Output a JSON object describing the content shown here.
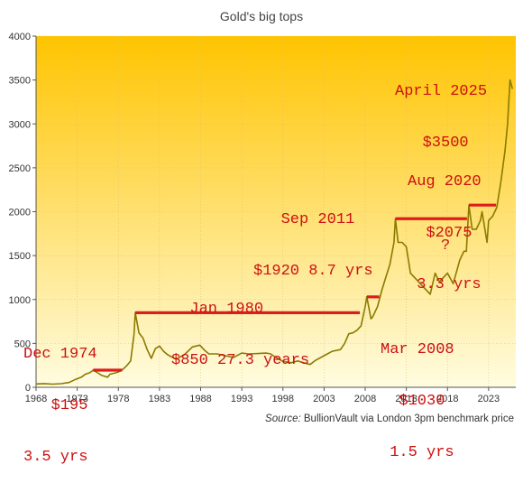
{
  "chart_data": {
    "type": "line",
    "title": "Gold's big tops",
    "xlabel": "",
    "ylabel": "",
    "xlim": [
      1968,
      2026.3
    ],
    "ylim": [
      0,
      4000
    ],
    "xticks": [
      1968,
      1973,
      1978,
      1983,
      1988,
      1993,
      1998,
      2003,
      2008,
      2013,
      2018,
      2023
    ],
    "yticks": [
      0,
      500,
      1000,
      1500,
      2000,
      2500,
      3000,
      3500,
      4000
    ],
    "grid": true,
    "colors": {
      "line": "#8a7a00",
      "top_lines": "#dd1c1c",
      "annotation": "#cc1010",
      "bg_top": "#ffc400",
      "bg_bottom": "#fffce0"
    },
    "series": [
      {
        "x": [
          1968.0,
          1969.0,
          1970.0,
          1971.0,
          1972.0,
          1972.8,
          1973.5,
          1974.0,
          1974.5,
          1974.95,
          1975.5,
          1976.0,
          1976.7,
          1977.0,
          1977.5,
          1978.0,
          1978.5,
          1979.0,
          1979.5,
          1979.9,
          1980.05,
          1980.5,
          1981.0,
          1981.5,
          1982.0,
          1982.5,
          1983.0,
          1983.5,
          1984.0,
          1985.0,
          1986.0,
          1987.0,
          1987.9,
          1988.5,
          1989.0,
          1990.0,
          1991.0,
          1992.0,
          1993.0,
          1993.8,
          1995.0,
          1996.0,
          1996.5,
          1997.0,
          1998.0,
          1999.0,
          1999.8,
          2000.5,
          2001.3,
          2002.0,
          2003.0,
          2004.0,
          2005.0,
          2005.5,
          2006.0,
          2006.5,
          2007.0,
          2007.5,
          2008.0,
          2008.2,
          2008.7,
          2008.9,
          2009.5,
          2010.0,
          2010.5,
          2011.0,
          2011.5,
          2011.67,
          2012.0,
          2012.5,
          2013.0,
          2013.5,
          2014.0,
          2015.0,
          2015.9,
          2016.5,
          2017.0,
          2018.0,
          2018.7,
          2019.5,
          2020.0,
          2020.3,
          2020.6,
          2021.0,
          2021.5,
          2022.0,
          2022.2,
          2022.8,
          2023.0,
          2023.5,
          2024.0,
          2024.5,
          2025.0,
          2025.3,
          2025.6,
          2025.9
        ],
        "y": [
          38,
          42,
          36,
          41,
          55,
          90,
          115,
          150,
          165,
          195,
          165,
          135,
          115,
          150,
          160,
          175,
          200,
          245,
          300,
          600,
          850,
          620,
          560,
          430,
          330,
          440,
          470,
          410,
          370,
          320,
          370,
          460,
          480,
          420,
          380,
          380,
          360,
          340,
          390,
          380,
          385,
          390,
          380,
          350,
          295,
          280,
          300,
          280,
          260,
          310,
          360,
          410,
          430,
          500,
          610,
          620,
          650,
          700,
          920,
          1030,
          780,
          800,
          920,
          1100,
          1250,
          1400,
          1650,
          1920,
          1650,
          1650,
          1600,
          1300,
          1250,
          1150,
          1060,
          1300,
          1200,
          1300,
          1180,
          1450,
          1550,
          1550,
          2075,
          1800,
          1800,
          1900,
          2000,
          1650,
          1900,
          1950,
          2050,
          2350,
          2700,
          3000,
          3500,
          3400
        ]
      }
    ],
    "tops": [
      {
        "label": "Dec 1974",
        "value": "$195",
        "x_start": 1974.95,
        "x_end": 1978.45,
        "y": 195
      },
      {
        "label": "Jan 1980",
        "value": "$850",
        "x_start": 1980.05,
        "x_end": 2007.35,
        "y": 850
      },
      {
        "label": "Mar 2008",
        "value": "$1030",
        "x_start": 2008.2,
        "x_end": 2009.7,
        "y": 1030
      },
      {
        "label": "Sep 2011",
        "value": "$1920",
        "x_start": 2011.67,
        "x_end": 2020.37,
        "y": 1920
      },
      {
        "label": "Aug 2020",
        "value": "$2075",
        "x_start": 2020.6,
        "x_end": 2023.9,
        "y": 2075
      }
    ],
    "annotations": {
      "dec1974": [
        "Dec 1974",
        "   $195",
        "3.5 yrs"
      ],
      "jan1980": [
        "  Jan 1980",
        "$850 27.3 years"
      ],
      "mar2008": [
        "Mar 2008",
        "  $1030",
        " 1.5 yrs"
      ],
      "sep2011": [
        "   Sep 2011",
        "$1920 8.7 yrs"
      ],
      "aug2020": [
        "Aug 2020",
        "  $2075",
        " 3.3 yrs"
      ],
      "apr2025": [
        "April 2025",
        "   $3500",
        "",
        "     ?"
      ]
    },
    "source": {
      "label": "Source:",
      "text": "BullionVault via London 3pm benchmark price"
    }
  }
}
